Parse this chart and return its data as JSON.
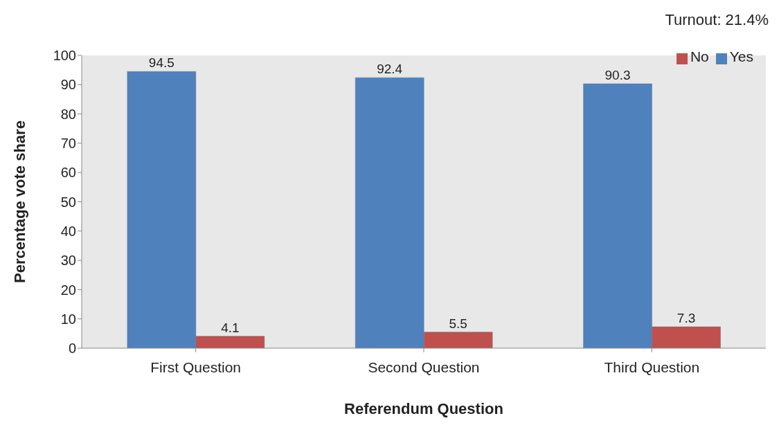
{
  "chart_data": {
    "type": "bar",
    "xlabel": "Referendum Question",
    "ylabel": "Percentage vote share",
    "categories": [
      "First Question",
      "Second Question",
      "Third Question"
    ],
    "series": [
      {
        "name": "Yes",
        "color": "#4f81bd",
        "values": [
          94.5,
          92.4,
          90.3
        ]
      },
      {
        "name": "No",
        "color": "#c0504d",
        "values": [
          4.1,
          5.5,
          7.3
        ]
      }
    ],
    "ylim": [
      0,
      100
    ],
    "yticks": [
      0,
      10,
      20,
      30,
      40,
      50,
      60,
      70,
      80,
      90,
      100
    ],
    "data_labels": true,
    "legend": "top right",
    "annotations": [
      "Turnout: 21.4%"
    ]
  }
}
